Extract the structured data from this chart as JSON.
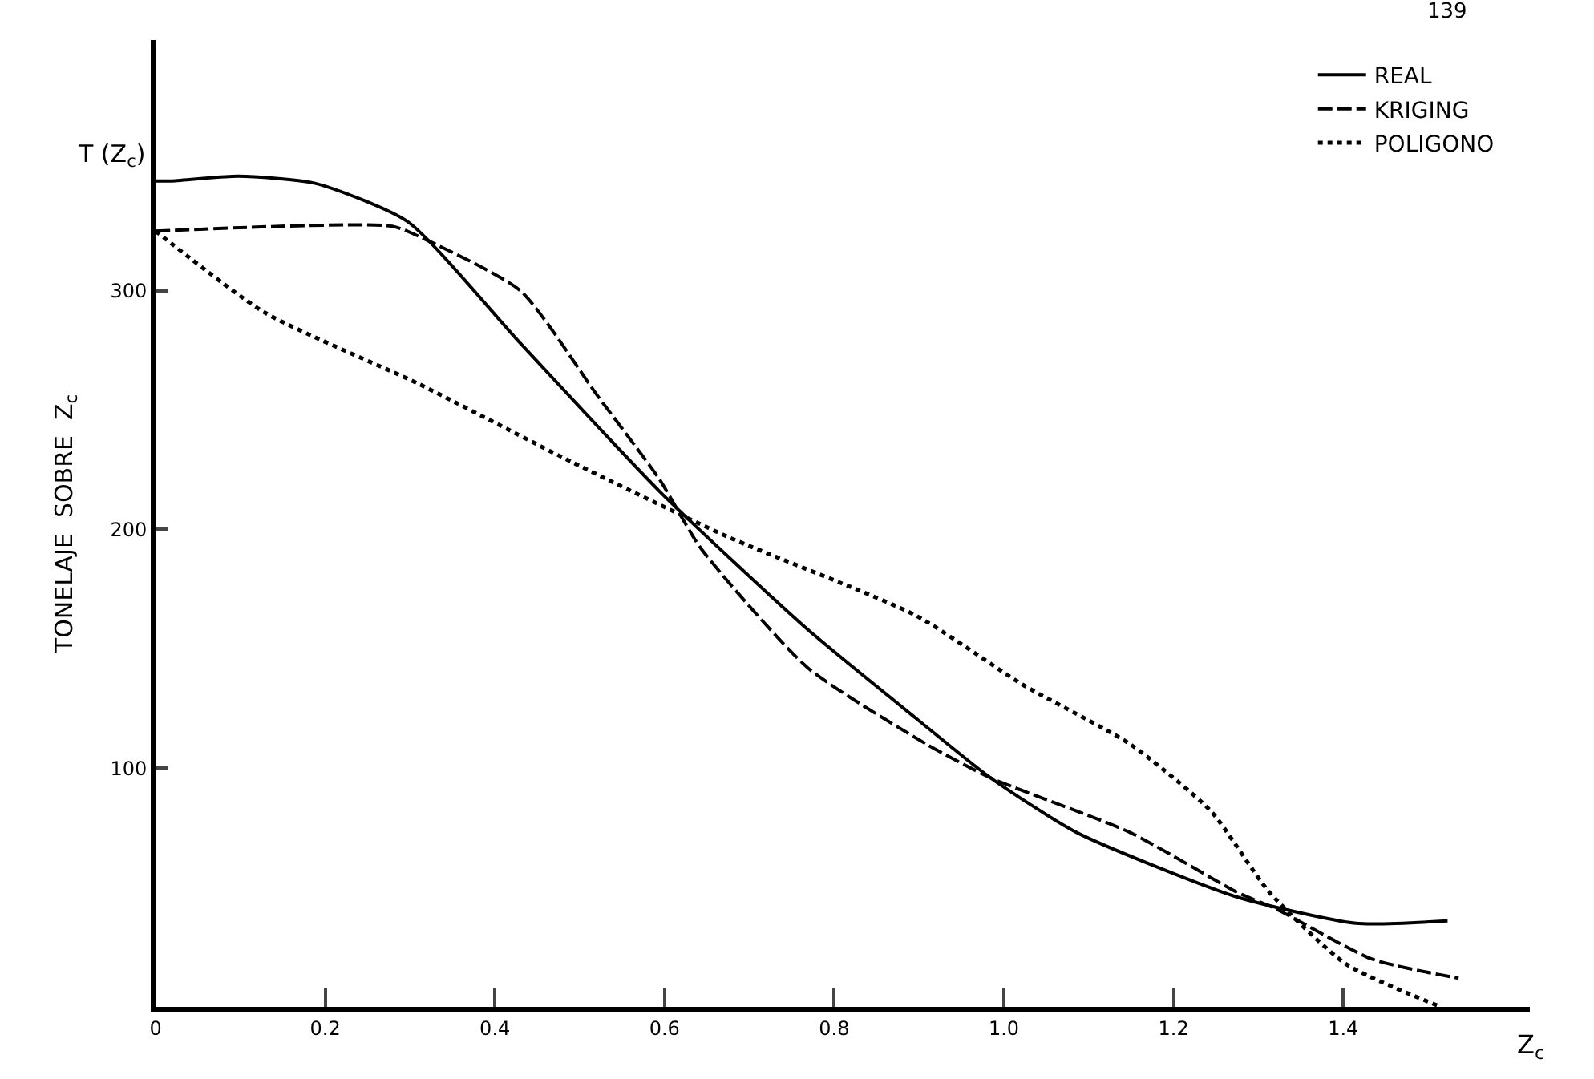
{
  "chart_data": {
    "type": "line",
    "xlabel": "Z$_{c}$",
    "ylabel": "TONELAJE  SOBRE  Z$_{c}$",
    "annotations": [
      "T (Z$_{c}$)",
      "139"
    ],
    "xlim": [
      0,
      1.62
    ],
    "ylim": [
      0,
      405
    ],
    "xticks": [
      0,
      0.2,
      0.4,
      0.6,
      0.8,
      {
        "value": 1,
        "label": "1.0"
      },
      1.2,
      1.4
    ],
    "yticks": [
      100,
      200,
      300
    ],
    "grid": false,
    "legend": "top right",
    "marker": "none",
    "series": [
      {
        "name": "REAL",
        "color": "#000000",
        "line_style": "solid",
        "x": [
          0,
          0.018,
          0.097,
          0.188,
          0.297,
          0.43,
          0.594,
          0.769,
          0.896,
          0.984,
          1.086,
          1.275,
          1.415,
          1.523
        ],
        "values": [
          346,
          346,
          348,
          345,
          329,
          278,
          216,
          158,
          121,
          96,
          73,
          46,
          35,
          36
        ]
      },
      {
        "name": "KRIGING",
        "color": "#000000",
        "line_style": "dashed",
        "x": [
          0,
          0.279,
          0.315,
          0.43,
          0.521,
          0.594,
          0.643,
          0.769,
          0.909,
          0.984,
          1.149,
          1.275,
          1.321,
          1.434,
          1.536
        ],
        "values": [
          325,
          327,
          322,
          300,
          256,
          221,
          192,
          142,
          110,
          96,
          73,
          48,
          41,
          20,
          12
        ]
      },
      {
        "name": "POLIGONO",
        "color": "#000000",
        "line_style": "dotted",
        "x": [
          0,
          0.128,
          0.31,
          0.492,
          0.674,
          0.896,
          1.022,
          1.149,
          1.244,
          1.313,
          1.403,
          1.515
        ],
        "values": [
          325,
          291,
          261,
          228,
          197,
          164,
          135,
          110,
          82,
          48,
          18,
          0
        ]
      }
    ]
  }
}
